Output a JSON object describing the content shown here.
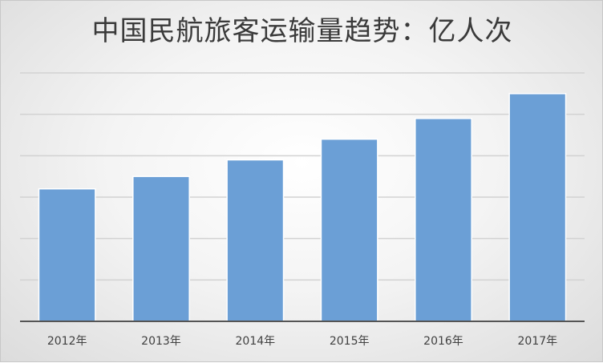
{
  "chart_data": {
    "type": "bar",
    "title": "中国民航旅客运输量趋势：亿人次",
    "categories": [
      "2012年",
      "2013年",
      "2014年",
      "2015年",
      "2016年",
      "2017年"
    ],
    "values": [
      3.2,
      3.5,
      3.9,
      4.4,
      4.9,
      5.5
    ],
    "ylim": [
      0,
      6
    ],
    "grid": true,
    "bar_color": "#6b9fd6"
  }
}
